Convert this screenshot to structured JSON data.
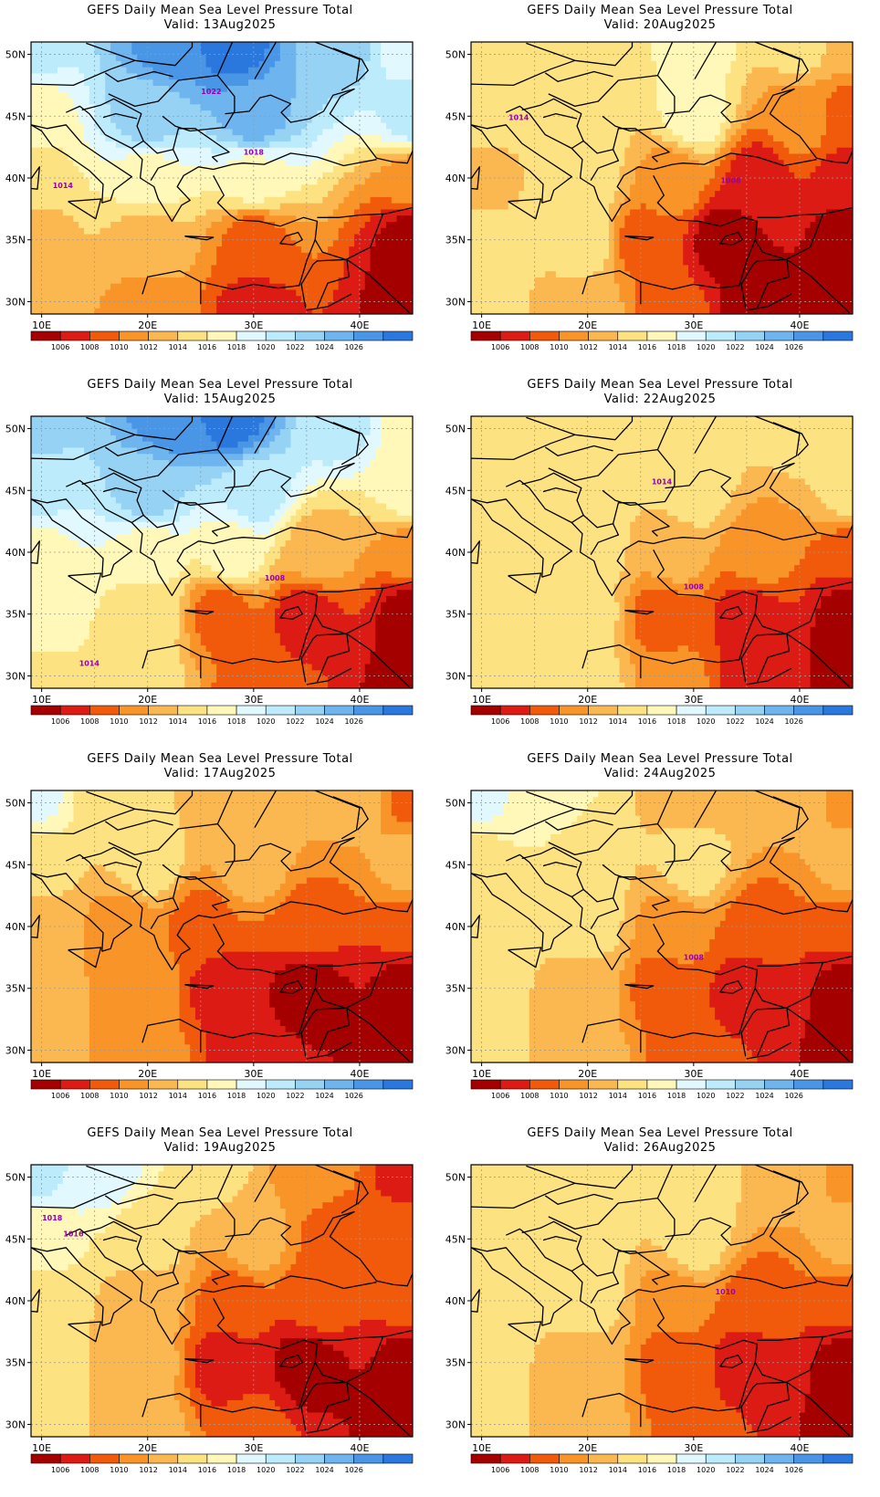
{
  "panel_title": "GEFS Daily Mean Sea Level Pressure Total",
  "valid_prefix": "Valid:",
  "lat_ticks": [
    "50N",
    "45N",
    "40N",
    "35N",
    "30N"
  ],
  "lon_ticks": [
    "10E",
    "20E",
    "30E",
    "40E"
  ],
  "colorbar": {
    "labels": [
      "1006",
      "1008",
      "1010",
      "1012",
      "1014",
      "1016",
      "1018",
      "1020",
      "1022",
      "1024",
      "1026"
    ],
    "colors": [
      "#a50000",
      "#dc1c14",
      "#f05a0a",
      "#f89428",
      "#fcb850",
      "#fde282",
      "#fff8b8",
      "#e2f8ff",
      "#bcebfb",
      "#96d2f4",
      "#6eb4ee",
      "#4a96e6",
      "#2a78de"
    ]
  },
  "panels": [
    {
      "date": "13Aug2025",
      "labels": [
        "1022",
        "1018",
        "1014"
      ]
    },
    {
      "date": "20Aug2025",
      "labels": [
        "1014",
        "1008"
      ]
    },
    {
      "date": "15Aug2025",
      "labels": [
        "1008",
        "1014"
      ]
    },
    {
      "date": "22Aug2025",
      "labels": [
        "1014",
        "1008"
      ]
    },
    {
      "date": "17Aug2025",
      "labels": []
    },
    {
      "date": "24Aug2025",
      "labels": [
        "1008"
      ]
    },
    {
      "date": "19Aug2025",
      "labels": [
        "1018",
        "1016"
      ]
    },
    {
      "date": "26Aug2025",
      "labels": [
        "1010"
      ]
    }
  ]
}
